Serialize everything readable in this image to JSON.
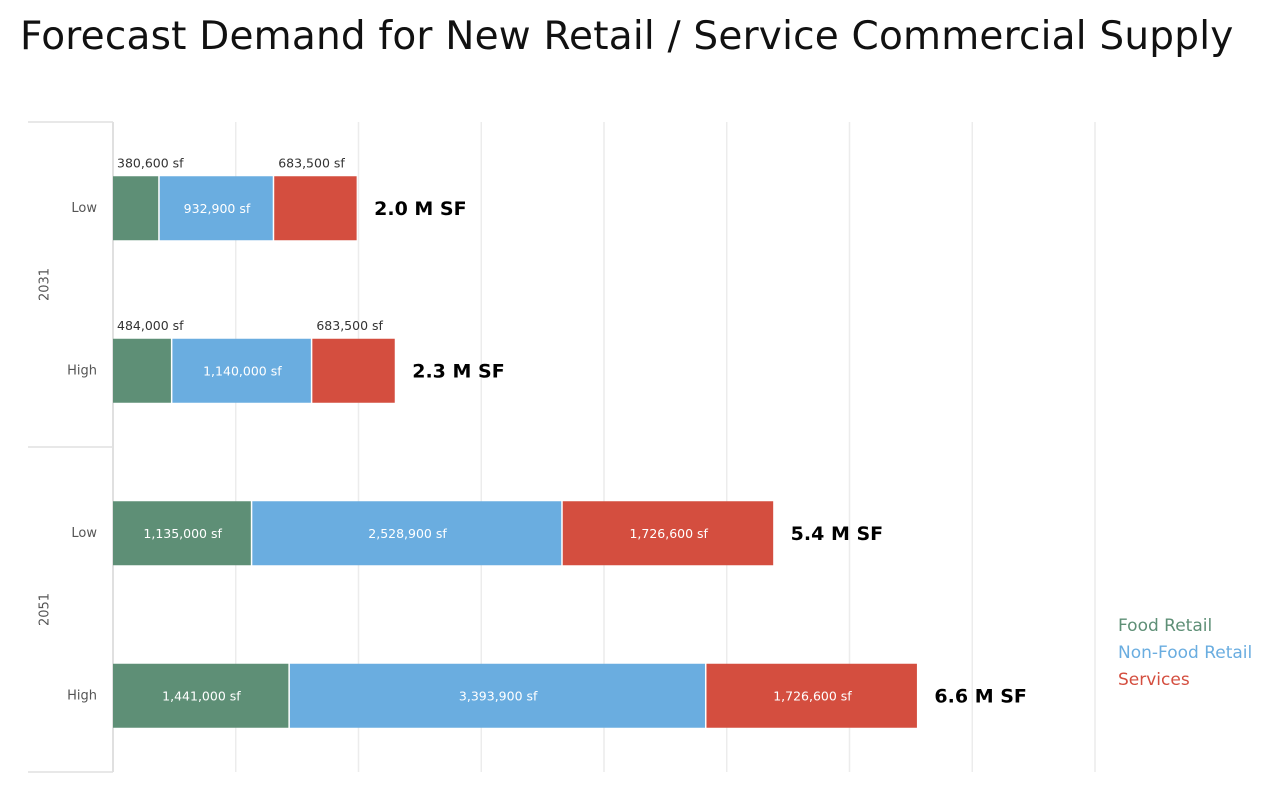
{
  "chart_data": {
    "type": "bar",
    "orientation": "horizontal",
    "stacked": true,
    "title": "Forecast Demand for New Retail / Service Commercial Supply",
    "xlabel": "",
    "ylabel": "",
    "xlim": [
      0,
      8000000
    ],
    "grid": true,
    "legend_position": "bottom-right",
    "groups": [
      {
        "label": "2031",
        "categories": [
          "Low",
          "High"
        ]
      },
      {
        "label": "2051",
        "categories": [
          "Low",
          "High"
        ]
      }
    ],
    "series": [
      {
        "name": "Food Retail",
        "color": "#5e8f76",
        "values": [
          380600,
          484000,
          1135000,
          1441000
        ],
        "labels": [
          "380,600 sf",
          "484,000 sf",
          "1,135,000 sf",
          "1,441,000 sf"
        ]
      },
      {
        "name": "Non-Food Retail",
        "color": "#6aade0",
        "values": [
          932900,
          1140000,
          2528900,
          3393900
        ],
        "labels": [
          "932,900 sf",
          "1,140,000 sf",
          "2,528,900 sf",
          "3,393,900 sf"
        ]
      },
      {
        "name": "Services",
        "color": "#d44e3f",
        "values": [
          683500,
          683500,
          1726600,
          1726600
        ],
        "labels": [
          "683,500 sf",
          "683,500 sf",
          "1,726,600 sf",
          "1,726,600 sf"
        ]
      }
    ],
    "totals": [
      "2.0 M SF",
      "2.3 M SF",
      "5.4 M SF",
      "6.6 M SF"
    ]
  }
}
